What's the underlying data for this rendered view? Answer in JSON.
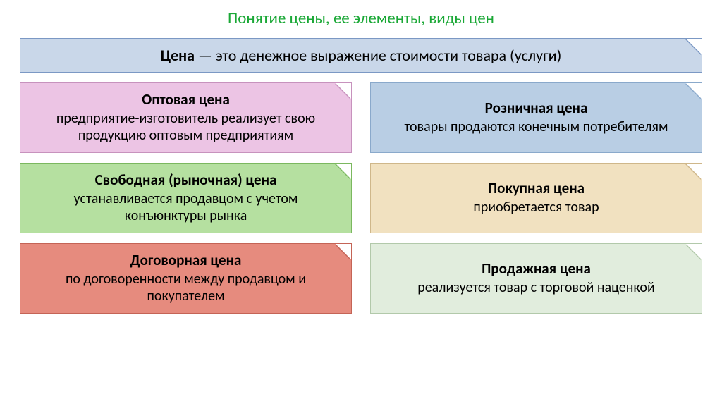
{
  "title": {
    "text": "Понятие цены, ее элементы, виды цен",
    "color": "#1aa836",
    "fontsize": 23
  },
  "definition": {
    "term": "Цена",
    "text": " — это денежное выражение стоимости товара (услуги)",
    "bg": "#c9d7e9",
    "border": "#7b98c4",
    "corner_light": "#7b98c4"
  },
  "cards": [
    {
      "title": "Оптовая цена",
      "desc": "предприятие-изготовитель реализует свою продукцию оптовым предприятиям",
      "bg": "#ecc4e4",
      "border": "#c792bd",
      "corner": "#c792bd"
    },
    {
      "title": "Розничная цена",
      "desc": "товары продаются конечным потребителям",
      "bg": "#b9cee4",
      "border": "#8aa9cb",
      "corner": "#8aa9cb"
    },
    {
      "title": "Свободная (рыночная) цена",
      "desc": "устанавливается продавцом с учетом конъюнктуры рынка",
      "bg": "#b5e0a0",
      "border": "#7bb85f",
      "corner": "#7bb85f"
    },
    {
      "title": "Покупная цена",
      "desc": "приобретается товар",
      "bg": "#f1e1c0",
      "border": "#cfb78a",
      "corner": "#cfb78a"
    },
    {
      "title": "Договорная цена",
      "desc": "по договоренности между продавцом и покупателем",
      "bg": "#e68b7e",
      "border": "#c46456",
      "corner": "#c46456"
    },
    {
      "title": "Продажная цена",
      "desc": "реализуется товар с торговой наценкой",
      "bg": "#e1eddd",
      "border": "#b2c9aa",
      "corner": "#b2c9aa"
    }
  ]
}
